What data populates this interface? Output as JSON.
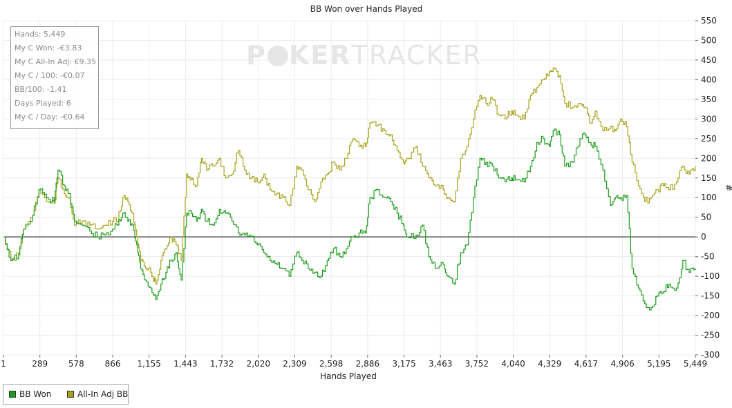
{
  "watermark": {
    "part1": "P",
    "part2": "KER",
    "part3": "TRACKER"
  },
  "stats": [
    "Hands: 5,449",
    "My C Won: -€3.83",
    "My C All-In Adj: €9.35",
    "My C / 100: -€0.07",
    "BB/100: -1.41",
    "Days Played: 6",
    "My C / Day: -€0.64"
  ],
  "legend": [
    {
      "label": "BB Won",
      "color": "#1a9c1a"
    },
    {
      "label": "All-In Adj BB",
      "color": "#a8a21a"
    }
  ],
  "chart_data": {
    "type": "line",
    "title": "BB Won over Hands Played",
    "xlabel": "Hands Played",
    "ylabel": "#",
    "xlim": [
      1,
      5449
    ],
    "ylim": [
      -300,
      550
    ],
    "x_ticks": [
      "1",
      "289",
      "578",
      "866",
      "1,155",
      "1,443",
      "1,732",
      "2,020",
      "2,309",
      "2,598",
      "2,886",
      "3,175",
      "3,463",
      "3,752",
      "4,040",
      "4,329",
      "4,617",
      "4,906",
      "5,195",
      "5,449"
    ],
    "y_ticks": [
      550,
      500,
      450,
      400,
      350,
      300,
      250,
      200,
      150,
      100,
      50,
      0,
      -50,
      -100,
      -150,
      -200,
      -250,
      -300
    ],
    "grid": true,
    "legend_position": "bottom-left",
    "series": [
      {
        "name": "BB Won",
        "color": "#1a9c1a",
        "x": [
          1,
          60,
          120,
          160,
          230,
          280,
          340,
          400,
          430,
          480,
          520,
          560,
          620,
          680,
          740,
          800,
          860,
          900,
          940,
          980,
          1020,
          1050,
          1080,
          1120,
          1160,
          1200,
          1240,
          1280,
          1320,
          1360,
          1400,
          1443,
          1480,
          1520,
          1560,
          1600,
          1650,
          1700,
          1750,
          1800,
          1850,
          1900,
          1950,
          2000,
          2050,
          2100,
          2150,
          2200,
          2250,
          2309,
          2350,
          2400,
          2450,
          2500,
          2550,
          2598,
          2650,
          2700,
          2750,
          2800,
          2850,
          2886,
          2950,
          3000,
          3050,
          3100,
          3150,
          3175,
          3250,
          3300,
          3350,
          3400,
          3463,
          3500,
          3550,
          3600,
          3650,
          3700,
          3752,
          3800,
          3850,
          3900,
          3950,
          4000,
          4040,
          4100,
          4150,
          4200,
          4250,
          4300,
          4329,
          4380,
          4420,
          4480,
          4540,
          4580,
          4617,
          4660,
          4720,
          4780,
          4820,
          4860,
          4906,
          4950,
          5000,
          5050,
          5100,
          5150,
          5195,
          5240,
          5300,
          5350,
          5400,
          5449
        ],
        "y": [
          0,
          -60,
          -45,
          20,
          55,
          120,
          100,
          90,
          170,
          130,
          110,
          40,
          30,
          15,
          0,
          5,
          20,
          30,
          60,
          40,
          30,
          -20,
          -80,
          -110,
          -130,
          -160,
          -120,
          -90,
          -60,
          -40,
          -110,
          60,
          60,
          40,
          70,
          40,
          30,
          70,
          60,
          40,
          10,
          5,
          0,
          -20,
          -40,
          -60,
          -70,
          -80,
          -100,
          -40,
          -60,
          -80,
          -90,
          -100,
          -60,
          -30,
          -50,
          -30,
          0,
          10,
          10,
          100,
          120,
          100,
          90,
          60,
          30,
          0,
          5,
          30,
          -50,
          -80,
          -70,
          -100,
          -120,
          -40,
          -20,
          100,
          200,
          190,
          180,
          150,
          140,
          150,
          145,
          140,
          180,
          240,
          250,
          230,
          270,
          260,
          180,
          190,
          250,
          260,
          240,
          230,
          170,
          80,
          100,
          100,
          105,
          -80,
          -130,
          -170,
          -180,
          -150,
          -140,
          -120,
          -130,
          -60,
          -90,
          -80
        ]
      },
      {
        "name": "All-In Adj BB",
        "color": "#a8a21a",
        "x": [
          1,
          60,
          120,
          160,
          230,
          280,
          340,
          400,
          430,
          480,
          520,
          560,
          620,
          680,
          740,
          800,
          860,
          900,
          940,
          980,
          1020,
          1050,
          1080,
          1120,
          1160,
          1200,
          1240,
          1280,
          1320,
          1360,
          1400,
          1443,
          1480,
          1520,
          1560,
          1600,
          1650,
          1700,
          1750,
          1800,
          1850,
          1900,
          1950,
          2000,
          2050,
          2100,
          2150,
          2200,
          2250,
          2309,
          2350,
          2400,
          2450,
          2500,
          2550,
          2598,
          2650,
          2700,
          2750,
          2800,
          2850,
          2886,
          2950,
          3000,
          3050,
          3100,
          3150,
          3175,
          3250,
          3300,
          3350,
          3400,
          3463,
          3500,
          3550,
          3600,
          3650,
          3700,
          3752,
          3800,
          3850,
          3900,
          3950,
          4000,
          4040,
          4100,
          4150,
          4200,
          4250,
          4300,
          4329,
          4380,
          4420,
          4480,
          4540,
          4580,
          4617,
          4660,
          4720,
          4780,
          4820,
          4860,
          4906,
          4950,
          5000,
          5050,
          5100,
          5150,
          5195,
          5240,
          5300,
          5350,
          5400,
          5449
        ],
        "y": [
          0,
          -60,
          -45,
          20,
          55,
          120,
          90,
          85,
          150,
          110,
          100,
          30,
          40,
          30,
          20,
          30,
          40,
          40,
          100,
          90,
          60,
          0,
          -60,
          -80,
          -90,
          -120,
          -60,
          -30,
          0,
          -20,
          -60,
          160,
          150,
          130,
          200,
          170,
          180,
          200,
          150,
          160,
          220,
          170,
          150,
          140,
          160,
          120,
          110,
          100,
          80,
          180,
          170,
          120,
          90,
          140,
          160,
          190,
          170,
          200,
          250,
          230,
          230,
          290,
          285,
          270,
          260,
          220,
          190,
          200,
          230,
          180,
          150,
          130,
          120,
          100,
          90,
          200,
          230,
          300,
          360,
          340,
          350,
          310,
          300,
          320,
          310,
          300,
          360,
          380,
          400,
          420,
          430,
          410,
          340,
          330,
          340,
          330,
          290,
          320,
          270,
          280,
          270,
          300,
          280,
          190,
          130,
          90,
          100,
          120,
          130,
          120,
          140,
          180,
          160,
          180
        ]
      }
    ]
  }
}
